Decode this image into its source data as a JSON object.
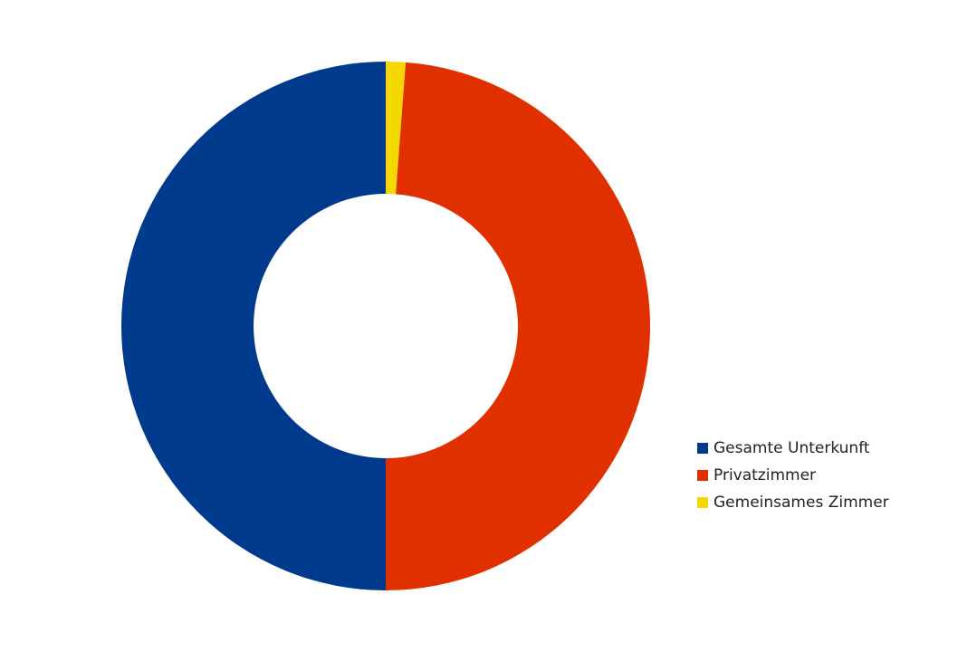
{
  "chart_data": {
    "type": "donut",
    "categories": [
      "Gesamte Unterkunft",
      "Privatzimmer",
      "Gemeinsames Zimmer"
    ],
    "values": [
      50,
      48.8,
      1.2
    ],
    "colors": [
      "#003a8c",
      "#e03000",
      "#f5d800"
    ],
    "legend": "right"
  }
}
